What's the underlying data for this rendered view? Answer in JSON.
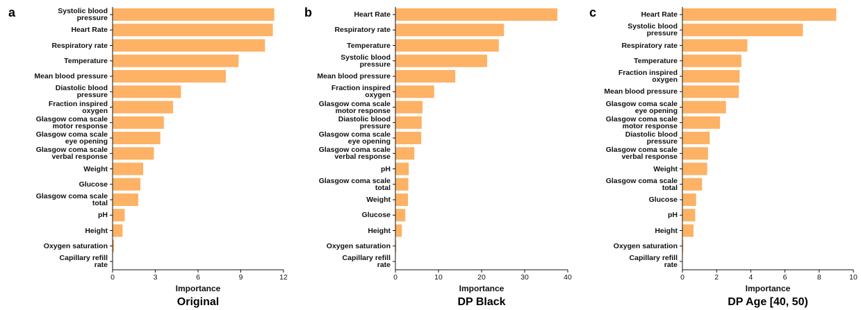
{
  "chart_data": [
    {
      "type": "bar",
      "orientation": "horizontal",
      "panel": "a",
      "title": "Original",
      "xlabel": "Importance",
      "color": "#fdb266",
      "categories": [
        "Systolic blood\npressure",
        "Heart Rate",
        "Respiratory rate",
        "Temperature",
        "Mean blood pressure",
        "Diastolic blood\npressure",
        "Fraction inspired\noxygen",
        "Glasgow coma scale\nmotor response",
        "Glasgow coma scale\neye opening",
        "Glasgow coma scale\nverbal response",
        "Weight",
        "Glucose",
        "Glasgow coma scale\ntotal",
        "pH",
        "Height",
        "Oxygen saturation",
        "Capillary refill\nrate"
      ],
      "values": [
        11.35,
        11.25,
        10.7,
        8.85,
        7.95,
        4.8,
        4.25,
        3.6,
        3.35,
        2.9,
        2.15,
        1.95,
        1.8,
        0.85,
        0.7,
        0.1,
        0
      ],
      "xlim": [
        0,
        12
      ],
      "xticks": [
        0,
        3,
        6,
        9,
        12
      ]
    },
    {
      "type": "bar",
      "orientation": "horizontal",
      "panel": "b",
      "title": "DP Black",
      "xlabel": "Importance",
      "color": "#fdb266",
      "categories": [
        "Heart Rate",
        "Respiratory rate",
        "Temperature",
        "Systolic blood\npressure",
        "Mean blood pressure",
        "Fraction inspired\noxygen",
        "Glasgow coma scale\nmotor response",
        "Diastolic blood\npressure",
        "Glasgow coma scale\neye opening",
        "Glasgow coma scale\nverbal response",
        "pH",
        "Glasgow coma scale\ntotal",
        "Weight",
        "Glucose",
        "Height",
        "Oxygen saturation",
        "Capillary refill\nrate"
      ],
      "values": [
        37.6,
        25.2,
        24.0,
        21.3,
        13.9,
        9.0,
        6.3,
        6.1,
        6.0,
        4.4,
        3.1,
        3.0,
        2.9,
        2.3,
        1.5,
        0.2,
        0
      ],
      "xlim": [
        0,
        40
      ],
      "xticks": [
        0,
        10,
        20,
        30,
        40
      ]
    },
    {
      "type": "bar",
      "orientation": "horizontal",
      "panel": "c",
      "title": "DP Age [40, 50)",
      "xlabel": "Importance",
      "color": "#fdb266",
      "categories": [
        "Heart Rate",
        "Systolic blood\npressure",
        "Respiratory rate",
        "Temperature",
        "Fraction inspired\noxygen",
        "Mean blood pressure",
        "Glasgow coma scale\neye opening",
        "Glasgow coma scale\nmotor response",
        "Diastolic blood\npressure",
        "Glasgow coma scale\nverbal response",
        "Weight",
        "Glasgow coma scale\ntotal",
        "Glucose",
        "pH",
        "Height",
        "Oxygen saturation",
        "Capillary refill\nrate"
      ],
      "values": [
        9.0,
        7.05,
        3.8,
        3.45,
        3.35,
        3.3,
        2.55,
        2.2,
        1.6,
        1.5,
        1.45,
        1.15,
        0.8,
        0.75,
        0.65,
        0.05,
        0
      ],
      "xlim": [
        0,
        10
      ],
      "xticks": [
        0,
        2,
        4,
        6,
        8,
        10
      ]
    }
  ]
}
